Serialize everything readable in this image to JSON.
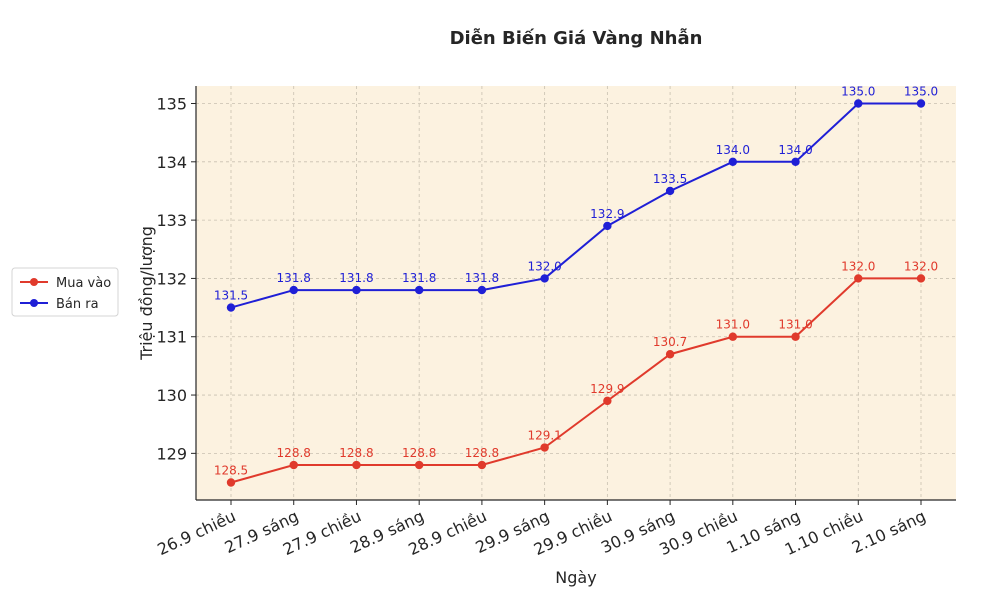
{
  "chart_data": {
    "type": "line",
    "title": "Diễn Biến Giá Vàng Nhẫn",
    "xlabel": "Ngày",
    "ylabel": "Triệu đồng/lượng",
    "categories": [
      "26.9 chiều",
      "27.9 sáng",
      "27.9 chiều",
      "28.9 sáng",
      "28.9 chiều",
      "29.9 sáng",
      "29.9 chiều",
      "30.9 sáng",
      "30.9 chiều",
      "1.10 sáng",
      "1.10 chiều",
      "2.10 sáng"
    ],
    "yticks": [
      129,
      130,
      131,
      132,
      133,
      134,
      135
    ],
    "ylim": [
      128.2,
      135.3
    ],
    "grid": true,
    "legend_position": "left",
    "plot_background": "#fcf2e0",
    "series": [
      {
        "name": "Mua vào",
        "color": "#e03a2c",
        "values": [
          128.5,
          128.8,
          128.8,
          128.8,
          128.8,
          129.1,
          129.9,
          130.7,
          131.0,
          131.0,
          132.0,
          132.0
        ],
        "labels": [
          "128.5",
          "128.8",
          "128.8",
          "128.8",
          "128.8",
          "129.1",
          "129.9",
          "130.7",
          "131.0",
          "131.0",
          "132.0",
          "132.0"
        ]
      },
      {
        "name": "Bán ra",
        "color": "#1f1fd6",
        "values": [
          131.5,
          131.8,
          131.8,
          131.8,
          131.8,
          132.0,
          132.9,
          133.5,
          134.0,
          134.0,
          135.0,
          135.0
        ],
        "labels": [
          "131.5",
          "131.8",
          "131.8",
          "131.8",
          "131.8",
          "132.0",
          "132.9",
          "133.5",
          "134.0",
          "134.0",
          "135.0",
          "135.0"
        ]
      }
    ]
  }
}
